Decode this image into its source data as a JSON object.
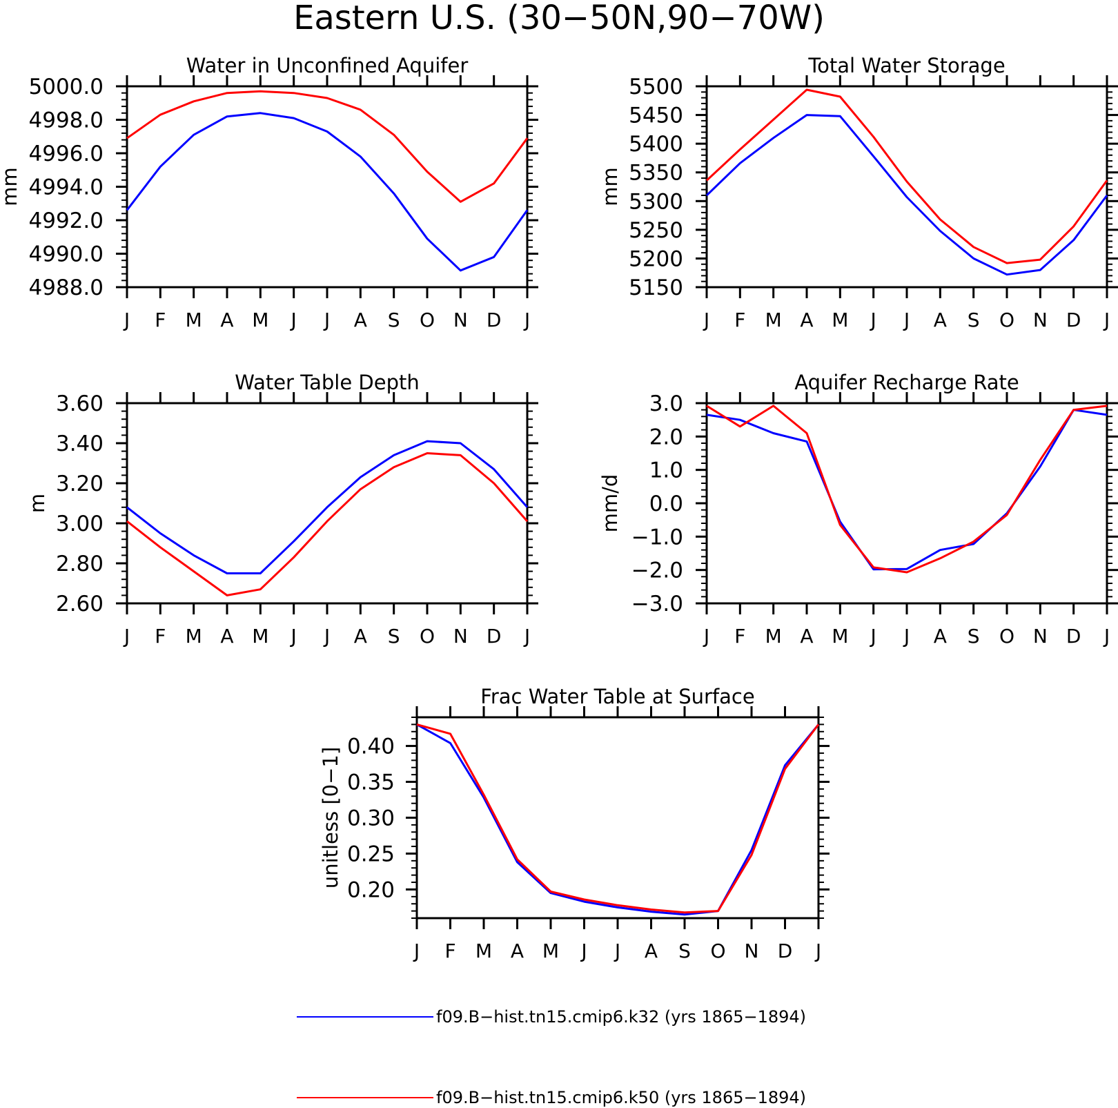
{
  "figure": {
    "title": "Eastern U.S. (30−50N,90−70W)"
  },
  "colors": {
    "k32": "#0000ff",
    "k50": "#ff0000",
    "axis": "#000000"
  },
  "legend": {
    "entries": [
      {
        "label": "f09.B−hist.tn15.cmip6.k32 (yrs 1865−1894)",
        "color": "#0000ff"
      },
      {
        "label": "f09.B−hist.tn15.cmip6.k50 (yrs 1865−1894)",
        "color": "#ff0000"
      }
    ]
  },
  "chart_data": [
    {
      "type": "line",
      "title": "Water in Unconfined Aquifer",
      "ylabel": "mm",
      "categories": [
        "J",
        "F",
        "M",
        "A",
        "M",
        "J",
        "J",
        "A",
        "S",
        "O",
        "N",
        "D",
        "J"
      ],
      "ylim": [
        4988.0,
        5000.0
      ],
      "yticks": [
        "4988.0",
        "4990.0",
        "4992.0",
        "4994.0",
        "4996.0",
        "4998.0",
        "5000.0"
      ],
      "grid": false,
      "series": [
        {
          "values": [
            4992.6,
            4995.2,
            4997.1,
            4998.2,
            4998.4,
            4998.1,
            4997.3,
            4995.8,
            4993.6,
            4990.9,
            4989.0,
            4989.8,
            4992.6
          ]
        },
        {
          "values": [
            4996.9,
            4998.3,
            4999.1,
            4999.6,
            4999.7,
            4999.6,
            4999.3,
            4998.6,
            4997.1,
            4994.9,
            4993.1,
            4994.2,
            4996.9
          ]
        }
      ]
    },
    {
      "type": "line",
      "title": "Total Water Storage",
      "ylabel": "mm",
      "categories": [
        "J",
        "F",
        "M",
        "A",
        "M",
        "J",
        "J",
        "A",
        "S",
        "O",
        "N",
        "D",
        "J"
      ],
      "ylim": [
        5150,
        5500
      ],
      "yticks": [
        "5150",
        "5200",
        "5250",
        "5300",
        "5350",
        "5400",
        "5450",
        "5500"
      ],
      "grid": false,
      "series": [
        {
          "values": [
            5310,
            5366,
            5410,
            5450,
            5448,
            5378,
            5307,
            5248,
            5200,
            5172,
            5180,
            5232,
            5310
          ]
        },
        {
          "values": [
            5336,
            5390,
            5442,
            5494,
            5482,
            5412,
            5334,
            5268,
            5220,
            5192,
            5198,
            5256,
            5336
          ]
        }
      ]
    },
    {
      "type": "line",
      "title": "Water Table Depth",
      "ylabel": "m",
      "categories": [
        "J",
        "F",
        "M",
        "A",
        "M",
        "J",
        "J",
        "A",
        "S",
        "O",
        "N",
        "D",
        "J"
      ],
      "ylim": [
        2.6,
        3.6
      ],
      "yticks": [
        "2.60",
        "2.80",
        "3.00",
        "3.20",
        "3.40",
        "3.60"
      ],
      "grid": false,
      "series": [
        {
          "values": [
            3.08,
            2.95,
            2.84,
            2.75,
            2.75,
            2.91,
            3.08,
            3.23,
            3.34,
            3.41,
            3.4,
            3.27,
            3.08
          ]
        },
        {
          "values": [
            3.01,
            2.88,
            2.76,
            2.64,
            2.67,
            2.83,
            3.01,
            3.17,
            3.28,
            3.35,
            3.34,
            3.2,
            3.01
          ]
        }
      ]
    },
    {
      "type": "line",
      "title": "Aquifer Recharge Rate",
      "ylabel": "mm/d",
      "categories": [
        "J",
        "F",
        "M",
        "A",
        "M",
        "J",
        "J",
        "A",
        "S",
        "O",
        "N",
        "D",
        "J"
      ],
      "ylim": [
        -3.0,
        3.0
      ],
      "yticks": [
        "−3.0",
        "−2.0",
        "−1.0",
        "0.0",
        "1.0",
        "2.0",
        "3.0"
      ],
      "grid": false,
      "series": [
        {
          "values": [
            2.65,
            2.5,
            2.1,
            1.85,
            -0.55,
            -1.98,
            -1.97,
            -1.4,
            -1.22,
            -0.3,
            1.1,
            2.8,
            2.65
          ]
        },
        {
          "values": [
            2.92,
            2.3,
            2.92,
            2.1,
            -0.65,
            -1.92,
            -2.07,
            -1.65,
            -1.15,
            -0.35,
            1.3,
            2.8,
            2.92
          ]
        }
      ]
    },
    {
      "type": "line",
      "title": "Frac Water Table at Surface",
      "ylabel": "unitless [0−1]",
      "categories": [
        "J",
        "F",
        "M",
        "A",
        "M",
        "J",
        "J",
        "A",
        "S",
        "O",
        "N",
        "D",
        "J"
      ],
      "ylim": [
        0.16,
        0.44
      ],
      "yticks": [
        "0.20",
        "0.25",
        "0.30",
        "0.35",
        "0.40"
      ],
      "grid": false,
      "series": [
        {
          "values": [
            0.43,
            0.404,
            0.328,
            0.238,
            0.195,
            0.183,
            0.175,
            0.169,
            0.165,
            0.17,
            0.255,
            0.373,
            0.43
          ]
        },
        {
          "values": [
            0.43,
            0.417,
            0.332,
            0.242,
            0.197,
            0.186,
            0.178,
            0.172,
            0.168,
            0.17,
            0.248,
            0.368,
            0.43
          ]
        }
      ]
    }
  ]
}
